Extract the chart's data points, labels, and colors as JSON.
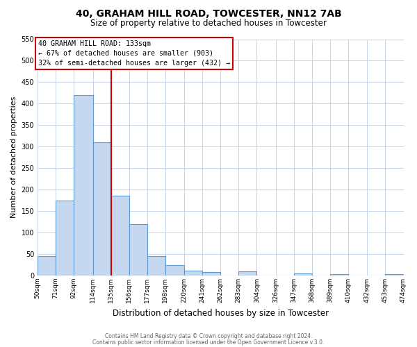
{
  "title": "40, GRAHAM HILL ROAD, TOWCESTER, NN12 7AB",
  "subtitle": "Size of property relative to detached houses in Towcester",
  "xlabel": "Distribution of detached houses by size in Towcester",
  "ylabel": "Number of detached properties",
  "bar_values": [
    45,
    175,
    420,
    310,
    185,
    120,
    45,
    25,
    12,
    8,
    0,
    10,
    0,
    0,
    5,
    0,
    3,
    0,
    0,
    3
  ],
  "bin_edges": [
    50,
    71,
    92,
    114,
    135,
    156,
    177,
    198,
    220,
    241,
    262,
    283,
    304,
    326,
    347,
    368,
    389,
    410,
    432,
    453,
    474
  ],
  "tick_labels": [
    "50sqm",
    "71sqm",
    "92sqm",
    "114sqm",
    "135sqm",
    "156sqm",
    "177sqm",
    "198sqm",
    "220sqm",
    "241sqm",
    "262sqm",
    "283sqm",
    "304sqm",
    "326sqm",
    "347sqm",
    "368sqm",
    "389sqm",
    "410sqm",
    "432sqm",
    "453sqm",
    "474sqm"
  ],
  "bar_color": "#c5d8f0",
  "bar_edgecolor": "#5b9bd5",
  "ylim": [
    0,
    550
  ],
  "yticks": [
    0,
    50,
    100,
    150,
    200,
    250,
    300,
    350,
    400,
    450,
    500,
    550
  ],
  "vline_x": 135,
  "vline_color": "#cc0000",
  "annotation_title": "40 GRAHAM HILL ROAD: 133sqm",
  "annotation_line1": "← 67% of detached houses are smaller (903)",
  "annotation_line2": "32% of semi-detached houses are larger (432) →",
  "annotation_box_color": "#cc0000",
  "background_color": "#ffffff",
  "grid_color": "#c8d4e8",
  "footer_line1": "Contains HM Land Registry data © Crown copyright and database right 2024.",
  "footer_line2": "Contains public sector information licensed under the Open Government Licence v.3.0."
}
